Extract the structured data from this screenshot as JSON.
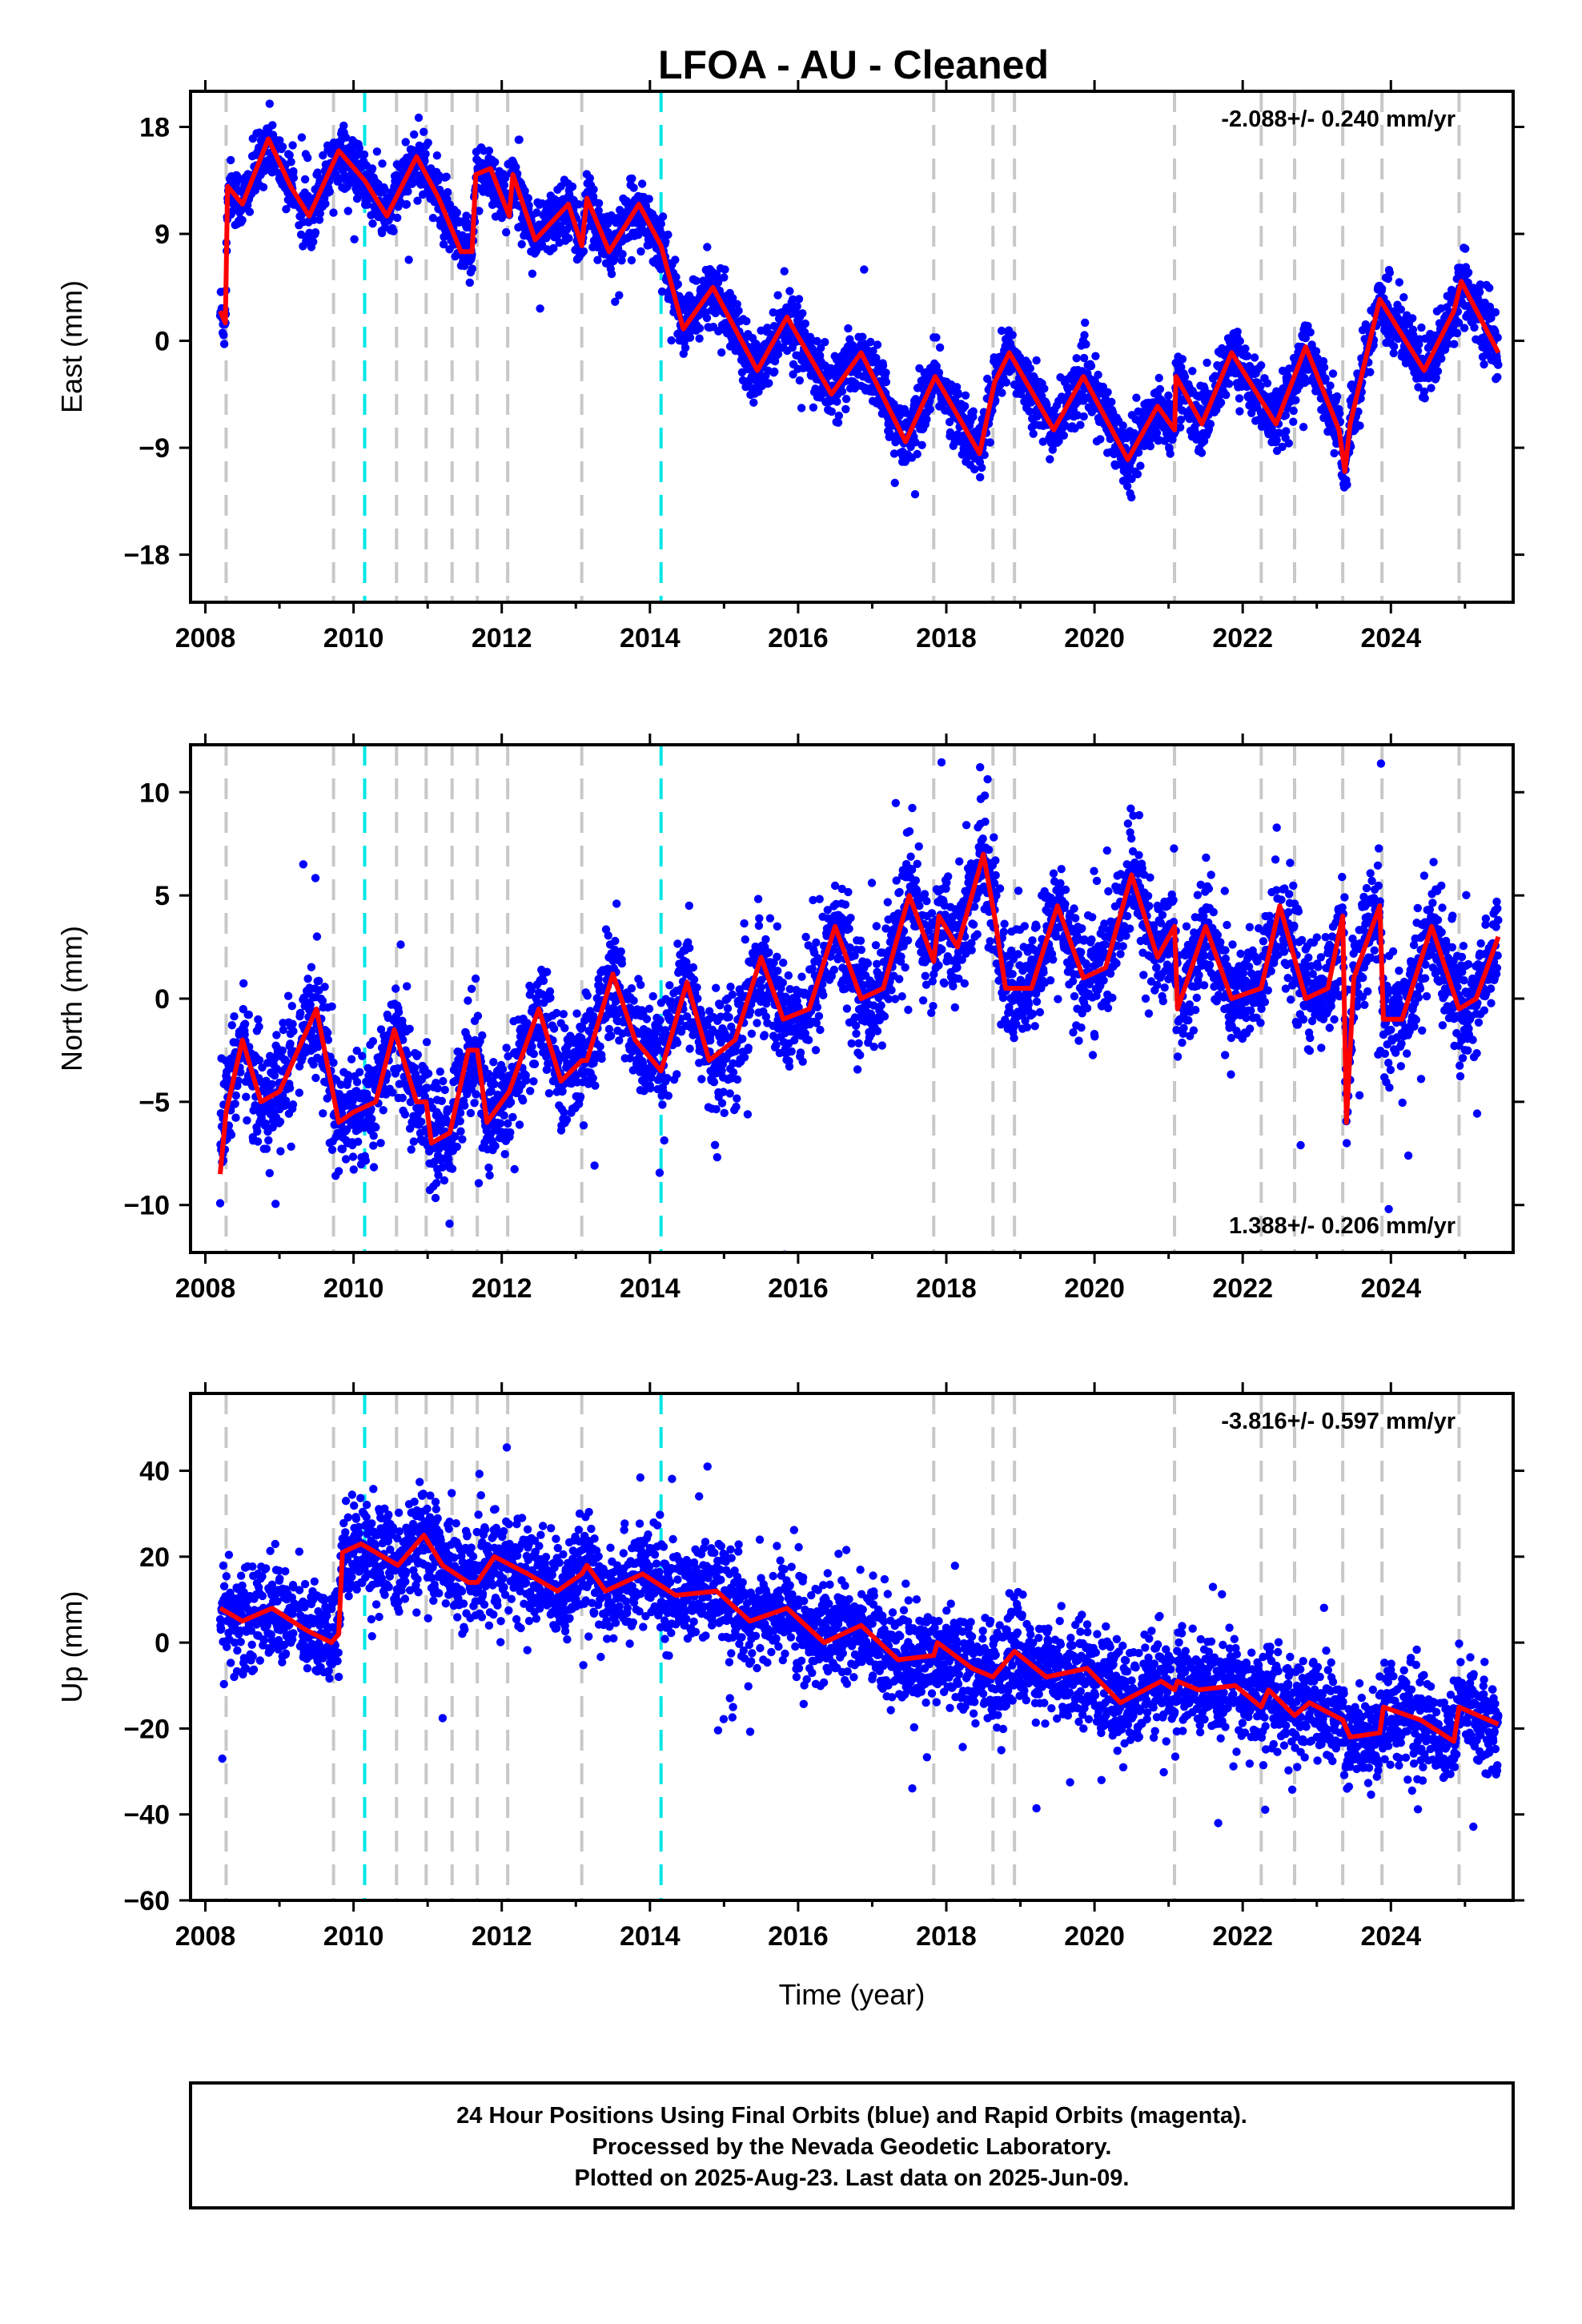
{
  "title": "LFOA  - AU - Cleaned",
  "colors": {
    "final_orbits": "#0000ff",
    "model": "#ff0000",
    "equipment_change": "#c8c8c8",
    "earthquake": "#00e6e6",
    "frame": "#000000"
  },
  "chart_data": [
    {
      "type": "scatter",
      "component": "East",
      "ylabel": "East (mm)",
      "xlim": [
        2007.8,
        2025.65
      ],
      "ylim": [
        -22,
        21
      ],
      "x_ticks": [
        2008,
        2010,
        2012,
        2014,
        2016,
        2018,
        2020,
        2022,
        2024
      ],
      "y_ticks": [
        -18,
        -9,
        0,
        9,
        18
      ],
      "rate_label": "-2.088+/- 0.240 mm/yr",
      "rate_position": "top-right",
      "model_series": {
        "name": "model",
        "x": [
          2008.2,
          2008.27,
          2008.3,
          2008.5,
          2008.85,
          2009.15,
          2009.4,
          2009.8,
          2010.15,
          2010.45,
          2010.85,
          2011.15,
          2011.45,
          2011.6,
          2011.65,
          2011.85,
          2012.1,
          2012.15,
          2012.45,
          2012.9,
          2013.08,
          2013.15,
          2013.45,
          2013.85,
          2014.15,
          2014.45,
          2014.85,
          2015.45,
          2015.85,
          2016.45,
          2016.85,
          2017.45,
          2017.85,
          2018.45,
          2018.65,
          2018.85,
          2019.45,
          2019.85,
          2020.45,
          2020.85,
          2021.08,
          2021.1,
          2021.45,
          2021.85,
          2022.45,
          2022.85,
          2023.3,
          2023.38,
          2023.45,
          2023.85,
          2024.45,
          2024.85,
          2024.95,
          2025.45
        ],
        "y": [
          2.5,
          1.5,
          13.0,
          11.5,
          17.0,
          13.0,
          10.5,
          16.0,
          13.5,
          10.5,
          15.5,
          12.0,
          7.5,
          7.5,
          14.0,
          14.5,
          10.5,
          14.0,
          8.5,
          11.5,
          8.0,
          12.0,
          7.5,
          11.5,
          8.0,
          1.0,
          4.5,
          -2.5,
          2.0,
          -4.5,
          -1.0,
          -8.5,
          -3.0,
          -9.5,
          -3.5,
          -1.0,
          -7.5,
          -3.0,
          -10.0,
          -5.5,
          -7.5,
          -3.0,
          -7.0,
          -1.0,
          -7.0,
          -0.5,
          -7.5,
          -11.0,
          -7.0,
          3.5,
          -2.5,
          2.5,
          5.0,
          -1.0
        ]
      },
      "equipment_changes": [
        2008.28,
        2009.73,
        2010.58,
        2010.98,
        2011.33,
        2011.67,
        2012.08,
        2013.08,
        2017.83,
        2018.63,
        2018.92,
        2021.08,
        2022.25,
        2022.7,
        2023.35,
        2023.88,
        2024.92
      ],
      "earthquakes": [
        2010.15,
        2014.15
      ]
    },
    {
      "type": "scatter",
      "component": "North",
      "ylabel": "North (mm)",
      "xlim": [
        2007.8,
        2025.65
      ],
      "ylim": [
        -12.3,
        12.3
      ],
      "x_ticks": [
        2008,
        2010,
        2012,
        2014,
        2016,
        2018,
        2020,
        2022,
        2024
      ],
      "y_ticks": [
        -10,
        -5,
        0,
        5,
        10
      ],
      "rate_label": "1.388+/- 0.206 mm/yr",
      "rate_position": "bottom-right",
      "model_series": {
        "name": "model",
        "x": [
          2008.2,
          2008.28,
          2008.5,
          2008.75,
          2009.0,
          2009.5,
          2009.8,
          2010.0,
          2010.3,
          2010.55,
          2010.85,
          2010.98,
          2011.05,
          2011.3,
          2011.55,
          2011.67,
          2011.8,
          2012.1,
          2012.5,
          2012.8,
          2013.08,
          2013.15,
          2013.5,
          2013.8,
          2014.15,
          2014.5,
          2014.8,
          2015.15,
          2015.5,
          2015.8,
          2016.15,
          2016.5,
          2016.85,
          2017.15,
          2017.5,
          2017.83,
          2017.9,
          2018.15,
          2018.5,
          2018.65,
          2018.8,
          2019.15,
          2019.5,
          2019.85,
          2020.15,
          2020.5,
          2020.85,
          2021.08,
          2021.12,
          2021.5,
          2021.85,
          2022.25,
          2022.5,
          2022.85,
          2023.15,
          2023.35,
          2023.4,
          2023.5,
          2023.85,
          2023.9,
          2024.15,
          2024.55,
          2024.92,
          2025.15,
          2025.45
        ],
        "y": [
          -8.5,
          -5.5,
          -2.0,
          -5.0,
          -4.5,
          -0.5,
          -6.0,
          -5.5,
          -5.0,
          -1.5,
          -5.0,
          -5.0,
          -7.0,
          -6.5,
          -2.5,
          -2.5,
          -6.0,
          -4.5,
          -0.5,
          -4.0,
          -3.0,
          -3.0,
          1.2,
          -2.0,
          -3.5,
          0.8,
          -3.0,
          -2.0,
          2.0,
          -1.0,
          -0.5,
          3.5,
          0.0,
          0.5,
          5.0,
          1.8,
          4.0,
          2.5,
          7.0,
          4.0,
          0.5,
          0.5,
          4.5,
          1.0,
          1.5,
          6.0,
          2.0,
          3.5,
          -0.5,
          3.5,
          0.0,
          0.5,
          4.5,
          0.0,
          0.5,
          4.0,
          -6.0,
          1.0,
          4.5,
          -1.0,
          -1.0,
          3.5,
          -0.5,
          0.0,
          3.0
        ]
      },
      "equipment_changes": [
        2008.28,
        2009.73,
        2010.58,
        2010.98,
        2011.33,
        2011.67,
        2012.08,
        2013.08,
        2017.83,
        2018.63,
        2018.92,
        2021.08,
        2022.25,
        2022.7,
        2023.35,
        2023.88,
        2024.92
      ],
      "earthquakes": [
        2010.15,
        2014.15
      ]
    },
    {
      "type": "scatter",
      "component": "Up",
      "ylabel": "Up (mm)",
      "xlabel": "Time (year)",
      "xlim": [
        2007.8,
        2025.65
      ],
      "ylim": [
        -60,
        58
      ],
      "x_ticks": [
        2008,
        2010,
        2012,
        2014,
        2016,
        2018,
        2020,
        2022,
        2024
      ],
      "y_ticks": [
        -60,
        -40,
        -20,
        0,
        20,
        40
      ],
      "rate_label": "-3.816+/- 0.597 mm/yr",
      "rate_position": "top-right",
      "model_series": {
        "name": "model",
        "x": [
          2008.2,
          2008.5,
          2008.9,
          2009.35,
          2009.7,
          2009.8,
          2009.85,
          2010.1,
          2010.6,
          2010.95,
          2011.2,
          2011.55,
          2011.67,
          2011.9,
          2012.35,
          2012.75,
          2013.08,
          2013.15,
          2013.4,
          2013.9,
          2014.35,
          2014.9,
          2015.35,
          2015.85,
          2016.35,
          2016.85,
          2017.35,
          2017.83,
          2017.88,
          2018.35,
          2018.63,
          2018.92,
          2019.35,
          2019.9,
          2020.35,
          2020.9,
          2021.08,
          2021.12,
          2021.4,
          2021.9,
          2022.25,
          2022.35,
          2022.7,
          2022.9,
          2023.35,
          2023.45,
          2023.85,
          2023.9,
          2024.4,
          2024.85,
          2024.92,
          2025.45
        ],
        "y": [
          8.0,
          5.0,
          8.0,
          3.0,
          0.0,
          2.0,
          21.0,
          23.0,
          18.0,
          25.0,
          18.0,
          14.0,
          14.0,
          20.0,
          16.0,
          12.0,
          16.0,
          18.0,
          12.0,
          16.0,
          11.0,
          12.0,
          5.0,
          8.0,
          0.0,
          4.0,
          -4.0,
          -3.0,
          0.0,
          -6.0,
          -8.0,
          -2.0,
          -8.0,
          -6.0,
          -14.0,
          -9.0,
          -11.0,
          -9.0,
          -11.0,
          -10.0,
          -15.0,
          -11.0,
          -17.0,
          -14.0,
          -18.0,
          -22.0,
          -21.0,
          -15.0,
          -18.0,
          -23.0,
          -15.0,
          -19.0
        ]
      },
      "equipment_changes": [
        2008.28,
        2009.73,
        2010.58,
        2010.98,
        2011.33,
        2011.67,
        2012.08,
        2013.08,
        2017.83,
        2018.63,
        2018.92,
        2021.08,
        2022.25,
        2022.7,
        2023.35,
        2023.88,
        2024.92
      ],
      "earthquakes": [
        2010.15,
        2014.15
      ]
    }
  ],
  "footer": {
    "line1": "24 Hour Positions Using Final Orbits (blue) and Rapid Orbits (magenta).",
    "line2": "Processed by the Nevada Geodetic Laboratory.",
    "line3": "Plotted on 2025-Aug-23. Last data on 2025-Jun-09."
  }
}
